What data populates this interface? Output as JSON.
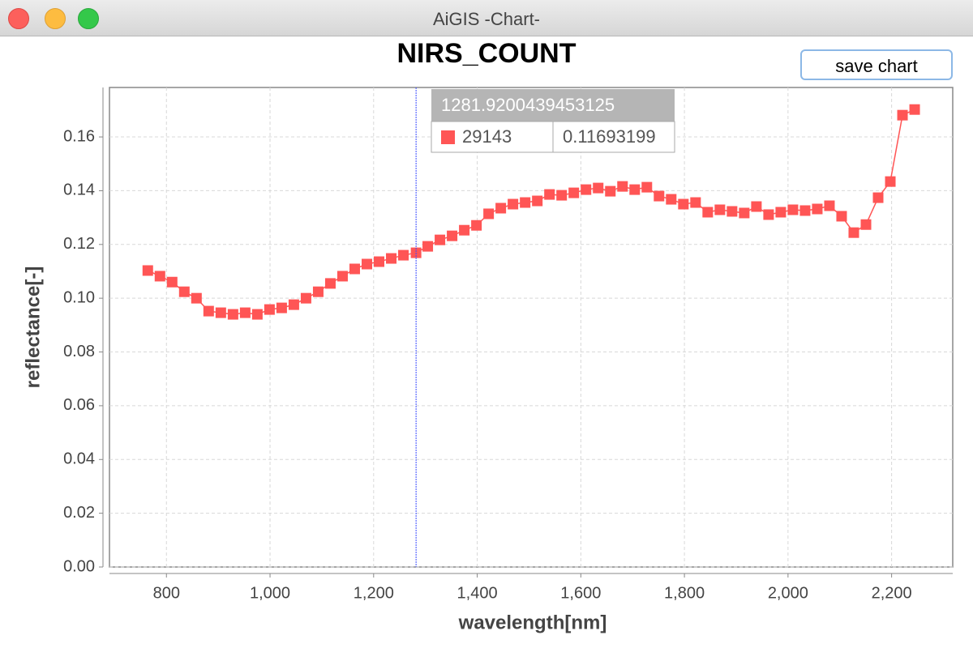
{
  "window_title": "AiGIS -Chart-",
  "button": "save chart",
  "chart_data": {
    "type": "line",
    "title": "NIRS_COUNT",
    "x_label": "wavelength[nm]",
    "y_label": "reflectance[-]",
    "x": [
      764,
      787.5,
      811,
      834.5,
      858,
      881.5,
      905,
      928.5,
      952,
      975.5,
      999,
      1022.5,
      1046,
      1069.5,
      1093,
      1116.5,
      1140,
      1163.5,
      1187,
      1210.5,
      1234,
      1257.5,
      1281.92,
      1304.5,
      1328,
      1351.5,
      1375,
      1398.5,
      1422,
      1445.5,
      1469,
      1492.5,
      1516,
      1539.5,
      1563,
      1586.5,
      1610,
      1633.5,
      1657,
      1680.5,
      1704,
      1727.5,
      1751,
      1774.5,
      1798,
      1821.5,
      1845,
      1868.5,
      1892,
      1915.5,
      1939,
      1962.5,
      1986,
      2009.5,
      2033,
      2056.5,
      2080,
      2103.5,
      2127,
      2150.5,
      2174,
      2197.5,
      2221,
      2244.5
    ],
    "series": [
      {
        "name": "29143",
        "color": "#ff5555",
        "values": [
          0.1103,
          0.1082,
          0.106,
          0.1024,
          0.1,
          0.0952,
          0.0946,
          0.094,
          0.0946,
          0.094,
          0.0958,
          0.0964,
          0.0976,
          0.1,
          0.1024,
          0.1055,
          0.1082,
          0.1109,
          0.1127,
          0.1136,
          0.1148,
          0.116,
          0.1169,
          0.1193,
          0.1217,
          0.1232,
          0.1253,
          0.1271,
          0.1314,
          0.1335,
          0.135,
          0.1356,
          0.1362,
          0.1386,
          0.1383,
          0.1392,
          0.1404,
          0.141,
          0.1398,
          0.1416,
          0.1404,
          0.1413,
          0.138,
          0.1368,
          0.135,
          0.1356,
          0.132,
          0.1329,
          0.1323,
          0.1317,
          0.1341,
          0.1311,
          0.132,
          0.1329,
          0.1326,
          0.1332,
          0.1344,
          0.1305,
          0.1244,
          0.1274,
          0.1374,
          0.1434,
          0.1681,
          0.1702
        ]
      }
    ],
    "xlim": [
      690,
      2318
    ],
    "ylim": [
      0,
      0.1784
    ],
    "xticks": [
      800,
      {
        "value": 1000,
        "label": "1,000"
      },
      {
        "value": 1200,
        "label": "1,200"
      },
      {
        "value": 1400,
        "label": "1,400"
      },
      {
        "value": 1600,
        "label": "1,600"
      },
      {
        "value": 1800,
        "label": "1,800"
      },
      {
        "value": 2000,
        "label": "2,000"
      },
      {
        "value": 2200,
        "label": "2,200"
      }
    ],
    "yticks": [
      {
        "value": 0,
        "label": "0.00"
      },
      {
        "value": 0.02,
        "label": "0.02"
      },
      {
        "value": 0.04,
        "label": "0.04"
      },
      {
        "value": 0.06,
        "label": "0.06"
      },
      {
        "value": 0.08,
        "label": "0.08"
      },
      {
        "value": 0.1,
        "label": "0.10"
      },
      {
        "value": 0.12,
        "label": "0.12"
      },
      {
        "value": 0.14,
        "label": "0.14"
      },
      {
        "value": 0.16,
        "label": "0.16"
      }
    ],
    "grid": true,
    "crosshair_x": 1281.92,
    "tooltip": {
      "title": "1281.9200439453125",
      "value_label": "0.11693199"
    }
  }
}
